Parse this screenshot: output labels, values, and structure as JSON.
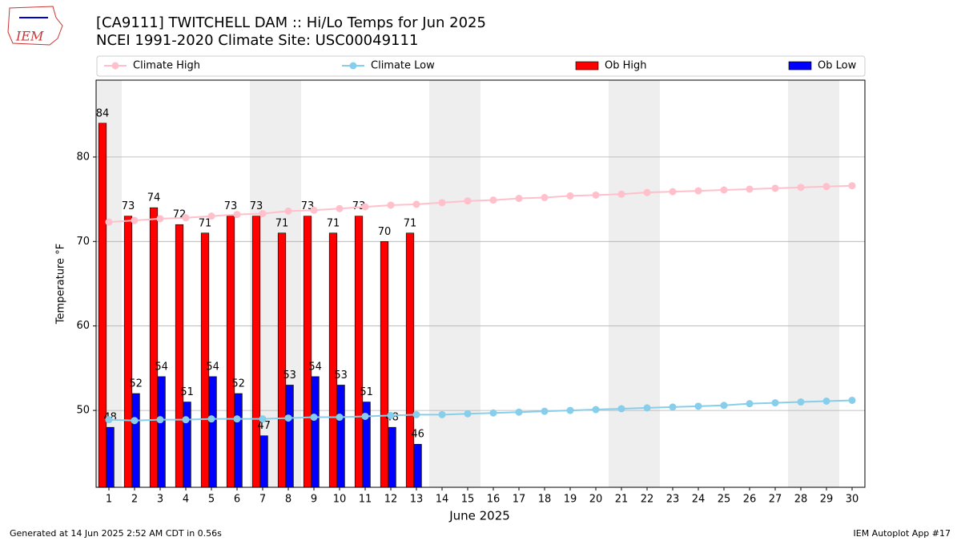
{
  "logo_text": "IEM",
  "footer": {
    "left": "Generated at 14 Jun 2025 2:52 AM CDT in 0.56s",
    "right": "IEM Autoplot App #17"
  },
  "chart_data": {
    "type": "bar_line",
    "title": "[CA9111] TWITCHELL DAM :: Hi/Lo Temps for Jun 2025",
    "subtitle": "NCEI 1991-2020 Climate Site: USC00049111",
    "x_label": "June 2025",
    "y_label": "Temperature °F",
    "x": [
      1,
      2,
      3,
      4,
      5,
      6,
      7,
      8,
      9,
      10,
      11,
      12,
      13,
      14,
      15,
      16,
      17,
      18,
      19,
      20,
      21,
      22,
      23,
      24,
      25,
      26,
      27,
      28,
      29,
      30
    ],
    "xlim": [
      0.5,
      30.5
    ],
    "xticks": [
      1,
      2,
      3,
      4,
      5,
      6,
      7,
      8,
      9,
      10,
      11,
      12,
      13,
      14,
      15,
      16,
      17,
      18,
      19,
      20,
      21,
      22,
      23,
      24,
      25,
      26,
      27,
      28,
      29,
      30
    ],
    "ylim": [
      40.9,
      89.1
    ],
    "yticks": [
      50,
      60,
      70,
      80
    ],
    "grid": true,
    "shaded_days": [
      1,
      7,
      8,
      14,
      15,
      21,
      22,
      28,
      29
    ],
    "series": [
      {
        "name": "Climate High",
        "kind": "line",
        "color": "#ffc0cb",
        "values": [
          72.3,
          72.5,
          72.7,
          72.8,
          73.0,
          73.2,
          73.3,
          73.6,
          73.7,
          73.9,
          74.1,
          74.3,
          74.4,
          74.6,
          74.8,
          74.9,
          75.1,
          75.2,
          75.4,
          75.5,
          75.6,
          75.8,
          75.9,
          76.0,
          76.1,
          76.2,
          76.3,
          76.4,
          76.5,
          76.6
        ]
      },
      {
        "name": "Climate Low",
        "kind": "line",
        "color": "#87ceeb",
        "values": [
          48.9,
          48.8,
          48.9,
          48.9,
          49.0,
          49.0,
          49.0,
          49.1,
          49.2,
          49.2,
          49.3,
          49.4,
          49.5,
          49.5,
          49.6,
          49.7,
          49.8,
          49.9,
          50.0,
          50.1,
          50.2,
          50.3,
          50.4,
          50.5,
          50.6,
          50.8,
          50.9,
          51.0,
          51.1,
          51.2
        ]
      },
      {
        "name": "Ob High",
        "kind": "bar",
        "color": "#ff0000",
        "values": [
          84,
          73,
          74,
          72,
          71,
          73,
          73,
          71,
          73,
          71,
          73,
          70,
          71,
          null,
          null,
          null,
          null,
          null,
          null,
          null,
          null,
          null,
          null,
          null,
          null,
          null,
          null,
          null,
          null,
          null
        ]
      },
      {
        "name": "Ob Low",
        "kind": "bar",
        "color": "#0000ff",
        "values": [
          48,
          52,
          54,
          51,
          54,
          52,
          47,
          53,
          54,
          53,
          51,
          48,
          46,
          null,
          null,
          null,
          null,
          null,
          null,
          null,
          null,
          null,
          null,
          null,
          null,
          null,
          null,
          null,
          null,
          null
        ]
      }
    ]
  }
}
